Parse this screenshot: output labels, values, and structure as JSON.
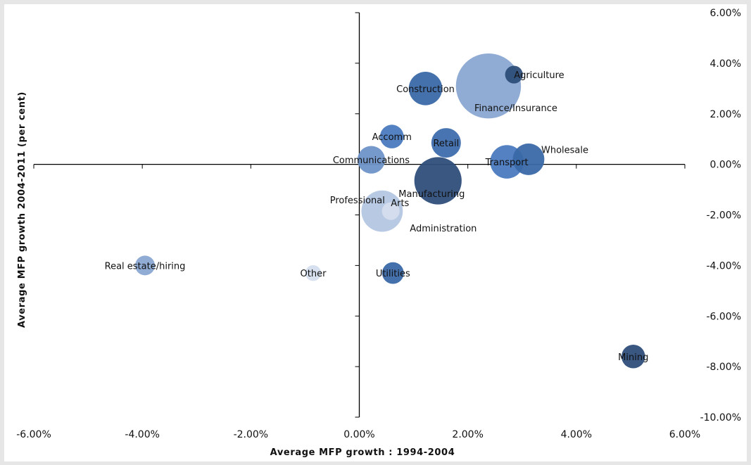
{
  "chart_data": {
    "type": "bubble",
    "xlabel": "Average  MFP growth  : 1994-2004",
    "ylabel": "Average  MFP growth  2004-2011  (per  cent)",
    "xlim": [
      -6.0,
      6.0
    ],
    "ylim": [
      -10.0,
      6.0
    ],
    "x_tick_labels": [
      "-6.00%",
      "-4.00%",
      "-2.00%",
      "0.00%",
      "2.00%",
      "4.00%",
      "6.00%"
    ],
    "y_tick_labels": [
      "6.00%",
      "4.00%",
      "2.00%",
      "0.00%",
      "-2.00%",
      "-4.00%",
      "-6.00%",
      "-8.00%",
      "-10.00%"
    ],
    "grid": false,
    "points": [
      {
        "label": "Agriculture",
        "x": 2.85,
        "y": 3.55,
        "size": 0.9,
        "color": "#2e4e7a"
      },
      {
        "label": "Construction",
        "x": 1.22,
        "y": 3.0,
        "size": 1.7,
        "color": "#3a68a6"
      },
      {
        "label": "Finance/Insurance",
        "x": 2.38,
        "y": 3.1,
        "size": 3.3,
        "color": "#8aa8d2"
      },
      {
        "label": "Accomm",
        "x": 0.6,
        "y": 1.1,
        "size": 1.2,
        "color": "#4a7abf"
      },
      {
        "label": "Retail",
        "x": 1.6,
        "y": 0.85,
        "size": 1.5,
        "color": "#3e6eae"
      },
      {
        "label": "Communications",
        "x": 0.22,
        "y": 0.18,
        "size": 1.4,
        "color": "#6f93c8"
      },
      {
        "label": "Transport",
        "x": 2.72,
        "y": 0.1,
        "size": 1.7,
        "color": "#4a7abf"
      },
      {
        "label": "Wholesale",
        "x": 3.12,
        "y": 0.2,
        "size": 1.6,
        "color": "#3a68a6"
      },
      {
        "label": "Manufacturing",
        "x": 1.45,
        "y": -0.65,
        "size": 2.4,
        "color": "#2e4e7a"
      },
      {
        "label": "Professional",
        "x": 0.42,
        "y": -1.85,
        "size": 2.1,
        "color": "#b4c6e1"
      },
      {
        "label": "Arts",
        "x": 0.58,
        "y": -1.85,
        "size": 0.9,
        "color": "#d4deee"
      },
      {
        "label": "Administration",
        "x": 0.62,
        "y": -2.35,
        "size": 0.0,
        "color": "#d4deee"
      },
      {
        "label": "Real estate/hiring",
        "x": -3.95,
        "y": -4.0,
        "size": 1.0,
        "color": "#8aa8d2"
      },
      {
        "label": "Other",
        "x": -0.85,
        "y": -4.3,
        "size": 0.8,
        "color": "#d4deee"
      },
      {
        "label": "Utilities",
        "x": 0.62,
        "y": -4.3,
        "size": 1.1,
        "color": "#3a68a6"
      },
      {
        "label": "Mining",
        "x": 5.05,
        "y": -7.6,
        "size": 1.2,
        "color": "#2e4e7a"
      }
    ]
  }
}
